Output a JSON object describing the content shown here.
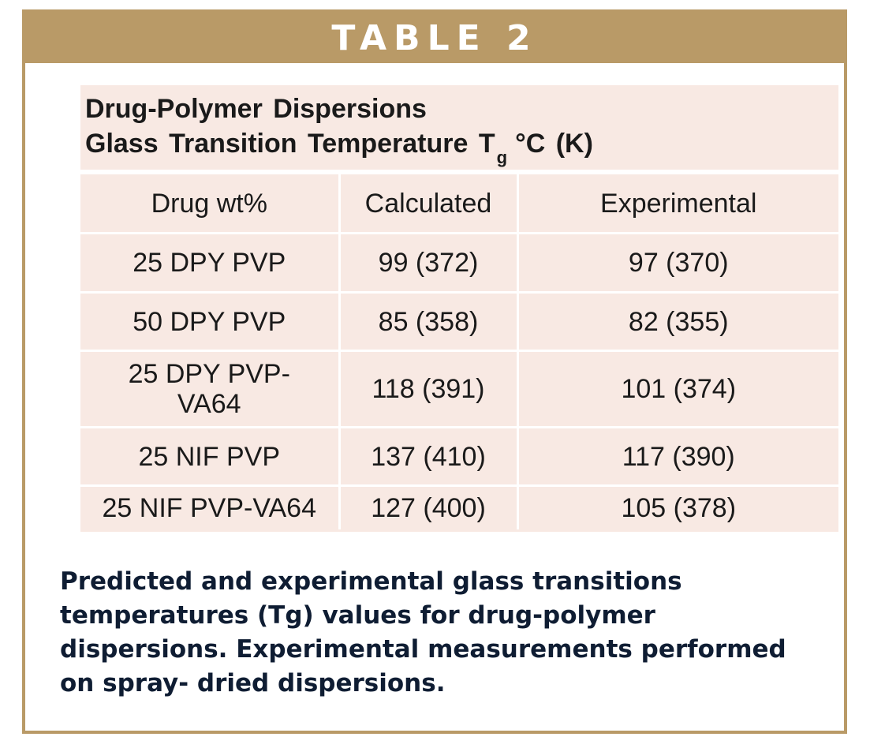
{
  "banner": {
    "title": "TABLE 2"
  },
  "table": {
    "title_line1": "Drug-Polymer Dispersions",
    "title_line2_prefix": "Glass Transition Temperature T",
    "title_line2_subscript": "g",
    "title_line2_suffix": "°C (K)",
    "columns": [
      "Drug wt%",
      "Calculated",
      "Experimental"
    ],
    "rows": [
      {
        "drug": "25 DPY PVP",
        "calculated": "99 (372)",
        "experimental": "97 (370)"
      },
      {
        "drug": "50 DPY PVP",
        "calculated": "85 (358)",
        "experimental": "82 (355)"
      },
      {
        "drug": "25 DPY PVP-\nVA64",
        "calculated": "118 (391)",
        "experimental": "101 (374)"
      },
      {
        "drug": "25 NIF PVP",
        "calculated": "137 (410)",
        "experimental": "117 (390)"
      },
      {
        "drug": "25 NIF PVP-VA64",
        "calculated": "127 (400)",
        "experimental": "105 (378)"
      }
    ]
  },
  "caption": "Predicted and experimental glass transitions temperatures (Tg) values for drug-polymer dispersions. Experimental measurements performed on spray- dried dispersions.",
  "colors": {
    "banner_and_frame": "#b99a67",
    "table_background": "#f8e9e3",
    "caption_text": "#0f1d33"
  }
}
